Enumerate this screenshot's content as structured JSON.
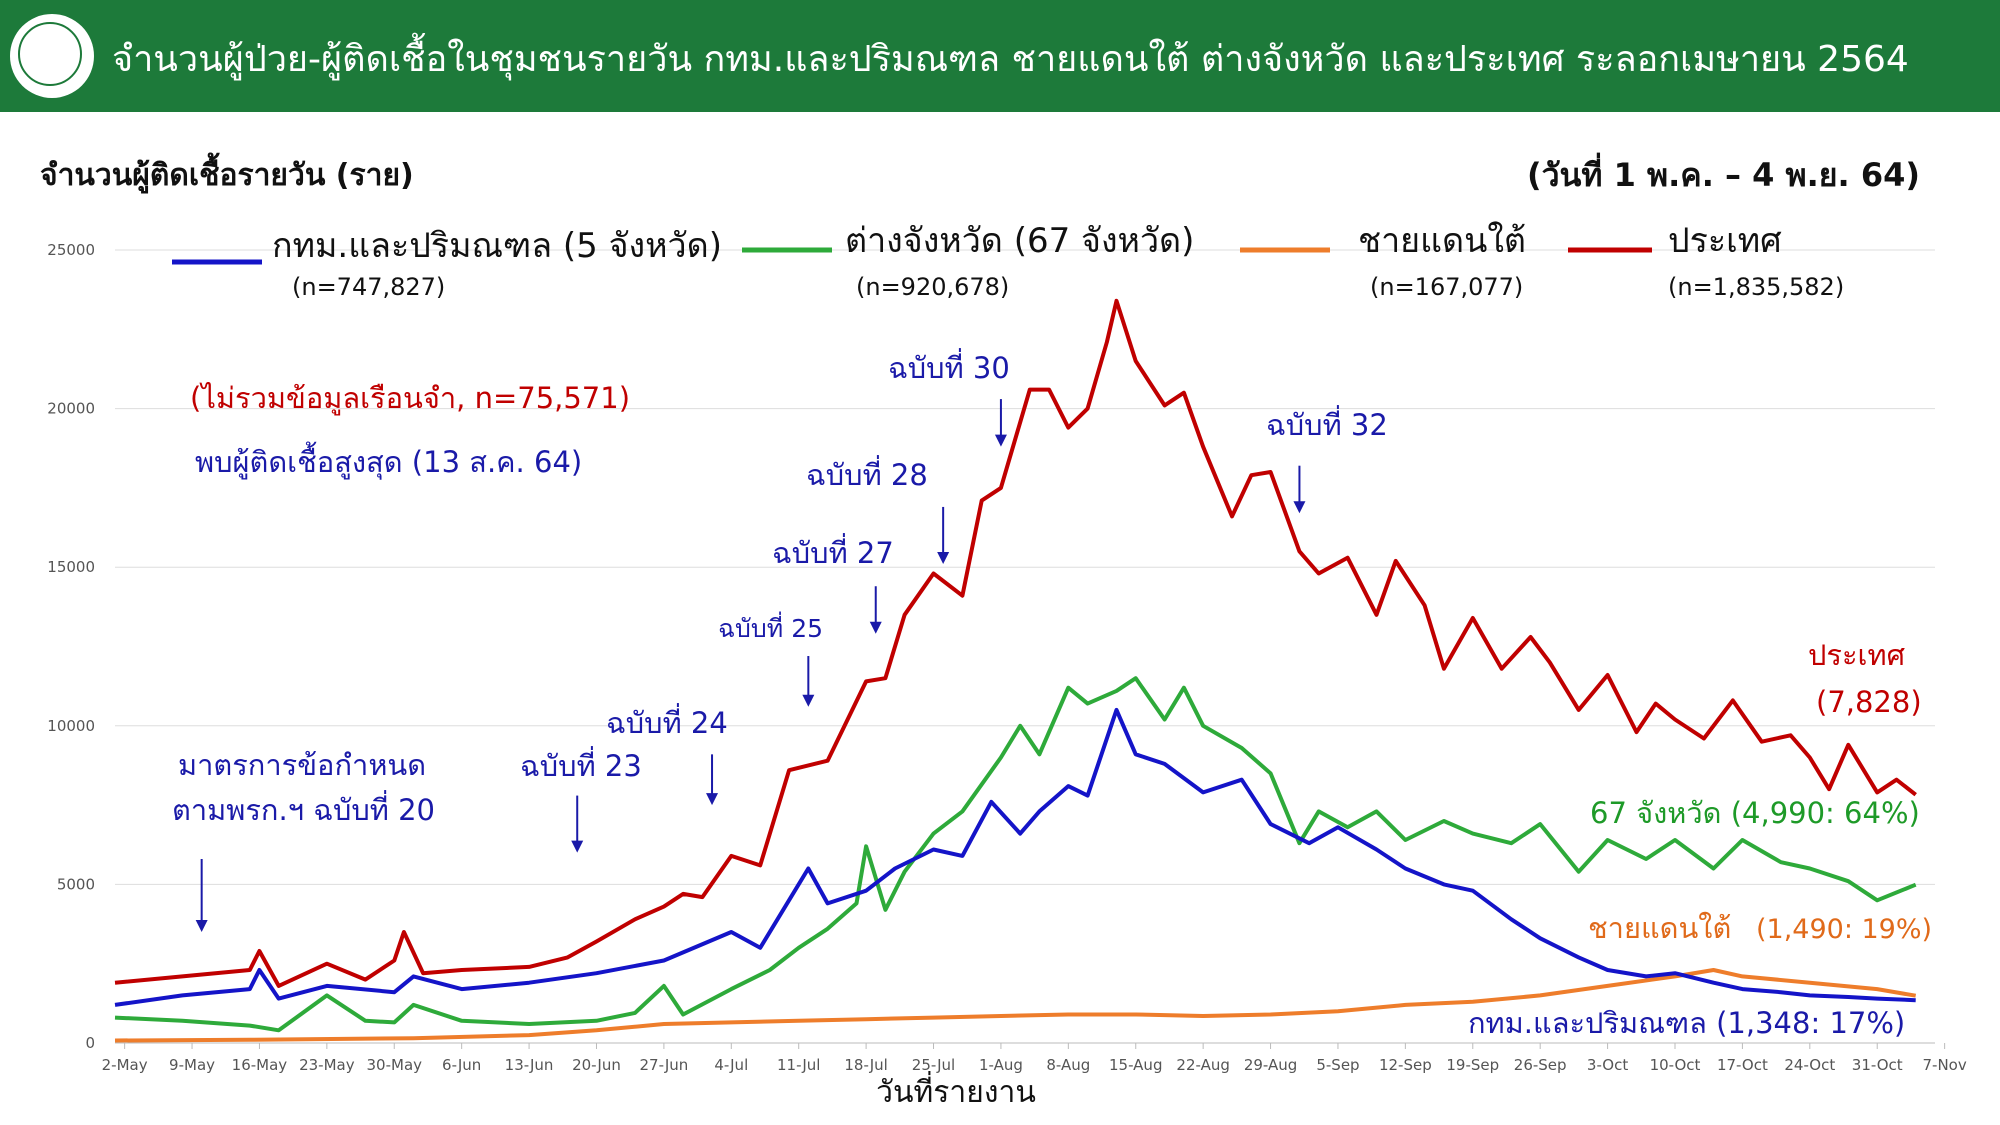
{
  "header": {
    "title": "จำนวนผู้ป่วย-ผู้ติดเชื้อในชุมชนรายวัน กทม.และปริมณฑล ชายแดนใต้ ต่างจังหวัด และประเทศ ระลอกเมษายน 2564"
  },
  "colors": {
    "header_bg": "#1d7a3a",
    "bkk": "#1414c8",
    "provinces": "#2eaa3a",
    "south": "#ee7d2b",
    "country": "#c00000"
  },
  "chart_data": {
    "type": "line",
    "ylabel": "จำนวนผู้ติดเชื้อรายวัน (ราย)",
    "date_range": "(วันที่ 1 พ.ค. – 4 พ.ย. 64)",
    "xlabel": "วันที่รายงาน",
    "ylim": [
      0,
      25000
    ],
    "y_ticks": [
      "0",
      "5000",
      "10000",
      "15000",
      "20000",
      "25000"
    ],
    "x_ticks": [
      "2-May",
      "9-May",
      "16-May",
      "23-May",
      "30-May",
      "6-Jun",
      "13-Jun",
      "20-Jun",
      "27-Jun",
      "4-Jul",
      "11-Jul",
      "18-Jul",
      "25-Jul",
      "1-Aug",
      "8-Aug",
      "15-Aug",
      "22-Aug",
      "29-Aug",
      "5-Sep",
      "12-Sep",
      "19-Sep",
      "26-Sep",
      "3-Oct",
      "10-Oct",
      "17-Oct",
      "24-Oct",
      "31-Oct",
      "7-Nov"
    ],
    "grid": true,
    "series": [
      {
        "name": "กทม.และปริมณฑล (5 จังหวัด)",
        "n": "(n=747,827)",
        "color": "#1414c8",
        "points": [
          [
            "2021-05-01",
            1200
          ],
          [
            "2021-05-08",
            1500
          ],
          [
            "2021-05-15",
            1700
          ],
          [
            "2021-05-16",
            2300
          ],
          [
            "2021-05-18",
            1400
          ],
          [
            "2021-05-23",
            1800
          ],
          [
            "2021-05-30",
            1600
          ],
          [
            "2021-06-01",
            2100
          ],
          [
            "2021-06-06",
            1700
          ],
          [
            "2021-06-13",
            1900
          ],
          [
            "2021-06-20",
            2200
          ],
          [
            "2021-06-27",
            2600
          ],
          [
            "2021-07-04",
            3500
          ],
          [
            "2021-07-07",
            3000
          ],
          [
            "2021-07-12",
            5500
          ],
          [
            "2021-07-14",
            4400
          ],
          [
            "2021-07-18",
            4800
          ],
          [
            "2021-07-21",
            5500
          ],
          [
            "2021-07-25",
            6100
          ],
          [
            "2021-07-28",
            5900
          ],
          [
            "2021-07-31",
            7600
          ],
          [
            "2021-08-03",
            6600
          ],
          [
            "2021-08-05",
            7300
          ],
          [
            "2021-08-08",
            8100
          ],
          [
            "2021-08-10",
            7800
          ],
          [
            "2021-08-13",
            10500
          ],
          [
            "2021-08-15",
            9100
          ],
          [
            "2021-08-18",
            8800
          ],
          [
            "2021-08-22",
            7900
          ],
          [
            "2021-08-26",
            8300
          ],
          [
            "2021-08-29",
            6900
          ],
          [
            "2021-09-02",
            6300
          ],
          [
            "2021-09-05",
            6800
          ],
          [
            "2021-09-09",
            6100
          ],
          [
            "2021-09-12",
            5500
          ],
          [
            "2021-09-16",
            5000
          ],
          [
            "2021-09-19",
            4800
          ],
          [
            "2021-09-23",
            3900
          ],
          [
            "2021-09-26",
            3300
          ],
          [
            "2021-09-30",
            2700
          ],
          [
            "2021-10-03",
            2300
          ],
          [
            "2021-10-07",
            2100
          ],
          [
            "2021-10-10",
            2200
          ],
          [
            "2021-10-14",
            1900
          ],
          [
            "2021-10-17",
            1700
          ],
          [
            "2021-10-21",
            1600
          ],
          [
            "2021-10-24",
            1500
          ],
          [
            "2021-10-28",
            1450
          ],
          [
            "2021-10-31",
            1400
          ],
          [
            "2021-11-04",
            1348
          ]
        ]
      },
      {
        "name": "ต่างจังหวัด (67 จังหวัด)",
        "n": "(n=920,678)",
        "color": "#2eaa3a",
        "points": [
          [
            "2021-05-01",
            800
          ],
          [
            "2021-05-08",
            700
          ],
          [
            "2021-05-15",
            550
          ],
          [
            "2021-05-18",
            400
          ],
          [
            "2021-05-23",
            1500
          ],
          [
            "2021-05-27",
            700
          ],
          [
            "2021-05-30",
            650
          ],
          [
            "2021-06-01",
            1200
          ],
          [
            "2021-06-06",
            700
          ],
          [
            "2021-06-13",
            600
          ],
          [
            "2021-06-20",
            700
          ],
          [
            "2021-06-24",
            950
          ],
          [
            "2021-06-27",
            1800
          ],
          [
            "2021-06-29",
            900
          ],
          [
            "2021-07-04",
            1700
          ],
          [
            "2021-07-08",
            2300
          ],
          [
            "2021-07-11",
            3000
          ],
          [
            "2021-07-14",
            3600
          ],
          [
            "2021-07-17",
            4400
          ],
          [
            "2021-07-18",
            6200
          ],
          [
            "2021-07-20",
            4200
          ],
          [
            "2021-07-22",
            5400
          ],
          [
            "2021-07-25",
            6600
          ],
          [
            "2021-07-28",
            7300
          ],
          [
            "2021-08-01",
            9000
          ],
          [
            "2021-08-03",
            10000
          ],
          [
            "2021-08-05",
            9100
          ],
          [
            "2021-08-08",
            11200
          ],
          [
            "2021-08-10",
            10700
          ],
          [
            "2021-08-13",
            11100
          ],
          [
            "2021-08-15",
            11500
          ],
          [
            "2021-08-18",
            10200
          ],
          [
            "2021-08-20",
            11200
          ],
          [
            "2021-08-22",
            10000
          ],
          [
            "2021-08-26",
            9300
          ],
          [
            "2021-08-29",
            8500
          ],
          [
            "2021-09-01",
            6300
          ],
          [
            "2021-09-03",
            7300
          ],
          [
            "2021-09-06",
            6800
          ],
          [
            "2021-09-09",
            7300
          ],
          [
            "2021-09-12",
            6400
          ],
          [
            "2021-09-16",
            7000
          ],
          [
            "2021-09-19",
            6600
          ],
          [
            "2021-09-23",
            6300
          ],
          [
            "2021-09-26",
            6900
          ],
          [
            "2021-09-30",
            5400
          ],
          [
            "2021-10-03",
            6400
          ],
          [
            "2021-10-07",
            5800
          ],
          [
            "2021-10-10",
            6400
          ],
          [
            "2021-10-14",
            5500
          ],
          [
            "2021-10-17",
            6400
          ],
          [
            "2021-10-21",
            5700
          ],
          [
            "2021-10-24",
            5500
          ],
          [
            "2021-10-28",
            5100
          ],
          [
            "2021-10-31",
            4500
          ],
          [
            "2021-11-04",
            4990
          ]
        ]
      },
      {
        "name": "ชายแดนใต้",
        "n": "(n=167,077)",
        "color": "#ee7d2b",
        "points": [
          [
            "2021-05-01",
            80
          ],
          [
            "2021-05-15",
            100
          ],
          [
            "2021-06-01",
            150
          ],
          [
            "2021-06-13",
            250
          ],
          [
            "2021-06-20",
            400
          ],
          [
            "2021-06-27",
            600
          ],
          [
            "2021-07-04",
            650
          ],
          [
            "2021-07-11",
            700
          ],
          [
            "2021-07-18",
            750
          ],
          [
            "2021-07-25",
            800
          ],
          [
            "2021-08-01",
            850
          ],
          [
            "2021-08-08",
            900
          ],
          [
            "2021-08-15",
            900
          ],
          [
            "2021-08-22",
            850
          ],
          [
            "2021-08-29",
            900
          ],
          [
            "2021-09-05",
            1000
          ],
          [
            "2021-09-12",
            1200
          ],
          [
            "2021-09-19",
            1300
          ],
          [
            "2021-09-26",
            1500
          ],
          [
            "2021-10-03",
            1800
          ],
          [
            "2021-10-10",
            2100
          ],
          [
            "2021-10-14",
            2300
          ],
          [
            "2021-10-17",
            2100
          ],
          [
            "2021-10-24",
            1900
          ],
          [
            "2021-10-31",
            1700
          ],
          [
            "2021-11-04",
            1490
          ]
        ]
      },
      {
        "name": "ประเทศ",
        "n": "(n=1,835,582)",
        "color": "#c00000",
        "points": [
          [
            "2021-05-01",
            1900
          ],
          [
            "2021-05-08",
            2100
          ],
          [
            "2021-05-15",
            2300
          ],
          [
            "2021-05-16",
            2900
          ],
          [
            "2021-05-18",
            1800
          ],
          [
            "2021-05-23",
            2500
          ],
          [
            "2021-05-27",
            2000
          ],
          [
            "2021-05-30",
            2600
          ],
          [
            "2021-05-31",
            3500
          ],
          [
            "2021-06-02",
            2200
          ],
          [
            "2021-06-06",
            2300
          ],
          [
            "2021-06-13",
            2400
          ],
          [
            "2021-06-17",
            2700
          ],
          [
            "2021-06-20",
            3200
          ],
          [
            "2021-06-24",
            3900
          ],
          [
            "2021-06-27",
            4300
          ],
          [
            "2021-06-29",
            4700
          ],
          [
            "2021-07-01",
            4600
          ],
          [
            "2021-07-04",
            5900
          ],
          [
            "2021-07-07",
            5600
          ],
          [
            "2021-07-10",
            8600
          ],
          [
            "2021-07-14",
            8900
          ],
          [
            "2021-07-18",
            11400
          ],
          [
            "2021-07-20",
            11500
          ],
          [
            "2021-07-22",
            13500
          ],
          [
            "2021-07-25",
            14800
          ],
          [
            "2021-07-28",
            14100
          ],
          [
            "2021-07-30",
            17100
          ],
          [
            "2021-08-01",
            17500
          ],
          [
            "2021-08-04",
            20600
          ],
          [
            "2021-08-06",
            20600
          ],
          [
            "2021-08-08",
            19400
          ],
          [
            "2021-08-10",
            20000
          ],
          [
            "2021-08-12",
            22100
          ],
          [
            "2021-08-13",
            23400
          ],
          [
            "2021-08-15",
            21500
          ],
          [
            "2021-08-18",
            20100
          ],
          [
            "2021-08-20",
            20500
          ],
          [
            "2021-08-22",
            18800
          ],
          [
            "2021-08-25",
            16600
          ],
          [
            "2021-08-27",
            17900
          ],
          [
            "2021-08-29",
            18000
          ],
          [
            "2021-09-01",
            15500
          ],
          [
            "2021-09-03",
            14800
          ],
          [
            "2021-09-06",
            15300
          ],
          [
            "2021-09-09",
            13500
          ],
          [
            "2021-09-11",
            15200
          ],
          [
            "2021-09-14",
            13800
          ],
          [
            "2021-09-16",
            11800
          ],
          [
            "2021-09-19",
            13400
          ],
          [
            "2021-09-22",
            11800
          ],
          [
            "2021-09-25",
            12800
          ],
          [
            "2021-09-27",
            12000
          ],
          [
            "2021-09-30",
            10500
          ],
          [
            "2021-10-03",
            11600
          ],
          [
            "2021-10-06",
            9800
          ],
          [
            "2021-10-08",
            10700
          ],
          [
            "2021-10-10",
            10200
          ],
          [
            "2021-10-13",
            9600
          ],
          [
            "2021-10-16",
            10800
          ],
          [
            "2021-10-19",
            9500
          ],
          [
            "2021-10-22",
            9700
          ],
          [
            "2021-10-24",
            9000
          ],
          [
            "2021-10-26",
            8000
          ],
          [
            "2021-10-28",
            9400
          ],
          [
            "2021-10-31",
            7900
          ],
          [
            "2021-11-02",
            8300
          ],
          [
            "2021-11-04",
            7828
          ]
        ]
      }
    ],
    "annotations": {
      "exclusion": "(ไม่รวมข้อมูลเรือนจำ, n=75,571)",
      "peak": "พบผู้ติดเชื้อสูงสุด (13 ส.ค. 64)",
      "measure_line1": "มาตรการข้อกำหนด",
      "measure_line2": "ตามพรก.ฯ ฉบับที่ 20",
      "issue_23": "ฉบับที่ 23",
      "issue_24": "ฉบับที่ 24",
      "issue_25": "ฉบับที่ 25",
      "issue_27": "ฉบับที่ 27",
      "issue_28": "ฉบับที่ 28",
      "issue_30": "ฉบับที่ 30",
      "issue_32": "ฉบับที่ 32",
      "country_label": "ประเทศ",
      "country_value": "(7,828)",
      "provinces_label": "67 จังหวัด  (4,990: 64%)",
      "south_label": "ชายแดนใต้",
      "south_value": "(1,490: 19%)",
      "bkk_label": "กทม.และปริมณฑล (1,348: 17%)"
    },
    "arrows": [
      {
        "date": "2021-05-10",
        "from": 5800,
        "to": 3500
      },
      {
        "date": "2021-06-18",
        "from": 7800,
        "to": 6000
      },
      {
        "date": "2021-07-02",
        "from": 9100,
        "to": 7500
      },
      {
        "date": "2021-07-12",
        "from": 12200,
        "to": 10600
      },
      {
        "date": "2021-07-19",
        "from": 14400,
        "to": 12900
      },
      {
        "date": "2021-07-26",
        "from": 16900,
        "to": 15100
      },
      {
        "date": "2021-08-01",
        "from": 20300,
        "to": 18800
      },
      {
        "date": "2021-09-01",
        "from": 18200,
        "to": 16700
      }
    ]
  }
}
